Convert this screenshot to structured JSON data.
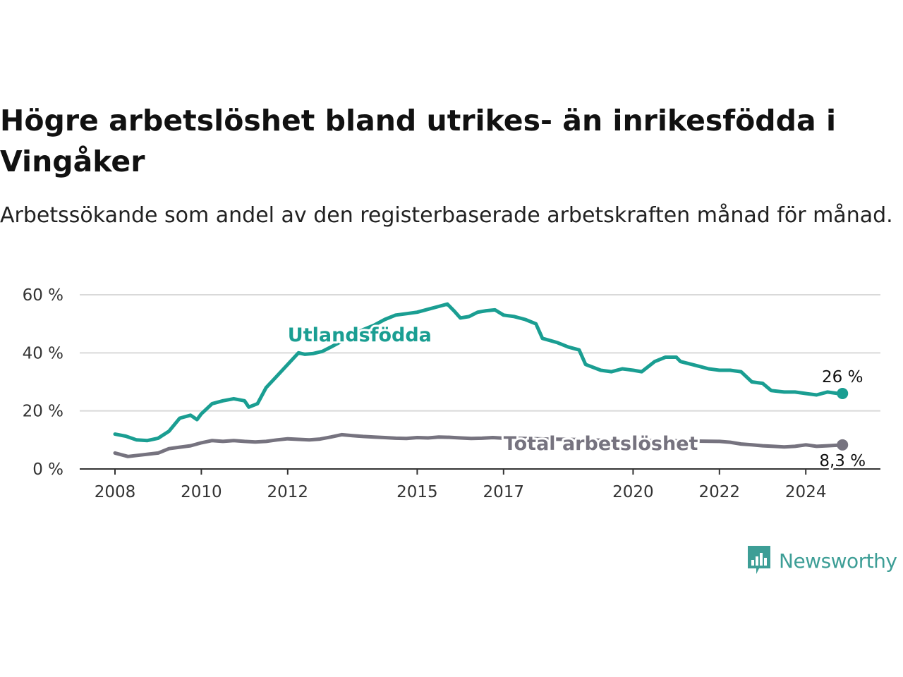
{
  "title": "Högre arbetslöshet bland utrikes- än inrikesfödda i Vingåker",
  "subtitle": "Arbetssökande som andel av den registerbaserade arbetskraften månad för månad.",
  "brand": {
    "name": "Newsworthy",
    "color": "#3d9e96",
    "icon": "newsworthy-bar-chart-icon"
  },
  "chart_data": {
    "type": "line",
    "title": "Högre arbetslöshet bland utrikes- än inrikesfödda i Vingåker",
    "xlabel": "",
    "ylabel": "",
    "x_range": [
      2008,
      2025
    ],
    "ylim": [
      0,
      60
    ],
    "y_ticks": [
      0,
      20,
      40,
      60
    ],
    "y_tick_labels": [
      "0 %",
      "20 %",
      "40 %",
      "60 %"
    ],
    "x_ticks": [
      2008,
      2010,
      2012,
      2015,
      2017,
      2020,
      2022,
      2024
    ],
    "x_tick_labels": [
      "2008",
      "2010",
      "2012",
      "2015",
      "2017",
      "2020",
      "2022",
      "2024"
    ],
    "grid": "horizontal",
    "legend": "inline labels",
    "series": [
      {
        "name": "Utlandsfödda",
        "color": "#1a9e92",
        "end_label": "26 %",
        "points": [
          [
            2008.0,
            12.0
          ],
          [
            2008.25,
            11.3
          ],
          [
            2008.5,
            10.0
          ],
          [
            2008.75,
            9.8
          ],
          [
            2009.0,
            10.6
          ],
          [
            2009.25,
            13.0
          ],
          [
            2009.5,
            17.5
          ],
          [
            2009.75,
            18.5
          ],
          [
            2009.9,
            17.0
          ],
          [
            2010.0,
            19.0
          ],
          [
            2010.25,
            22.5
          ],
          [
            2010.5,
            23.5
          ],
          [
            2010.75,
            24.2
          ],
          [
            2011.0,
            23.5
          ],
          [
            2011.1,
            21.3
          ],
          [
            2011.3,
            22.5
          ],
          [
            2011.5,
            28.0
          ],
          [
            2011.75,
            32.0
          ],
          [
            2012.0,
            36.0
          ],
          [
            2012.25,
            40.0
          ],
          [
            2012.4,
            39.5
          ],
          [
            2012.6,
            39.8
          ],
          [
            2012.8,
            40.5
          ],
          [
            2013.0,
            42.0
          ],
          [
            2013.25,
            44.0
          ],
          [
            2013.5,
            46.0
          ],
          [
            2013.75,
            48.0
          ],
          [
            2014.0,
            49.5
          ],
          [
            2014.25,
            51.5
          ],
          [
            2014.5,
            53.0
          ],
          [
            2014.75,
            53.5
          ],
          [
            2015.0,
            54.0
          ],
          [
            2015.25,
            55.0
          ],
          [
            2015.5,
            56.0
          ],
          [
            2015.7,
            56.8
          ],
          [
            2015.85,
            54.5
          ],
          [
            2016.0,
            52.0
          ],
          [
            2016.2,
            52.5
          ],
          [
            2016.4,
            54.0
          ],
          [
            2016.6,
            54.5
          ],
          [
            2016.8,
            54.8
          ],
          [
            2017.0,
            53.0
          ],
          [
            2017.25,
            52.5
          ],
          [
            2017.5,
            51.5
          ],
          [
            2017.75,
            50.0
          ],
          [
            2017.9,
            45.0
          ],
          [
            2018.25,
            43.5
          ],
          [
            2018.5,
            42.0
          ],
          [
            2018.75,
            41.0
          ],
          [
            2018.9,
            36.0
          ],
          [
            2019.25,
            34.0
          ],
          [
            2019.5,
            33.5
          ],
          [
            2019.75,
            34.5
          ],
          [
            2020.0,
            34.0
          ],
          [
            2020.2,
            33.5
          ],
          [
            2020.5,
            37.0
          ],
          [
            2020.75,
            38.5
          ],
          [
            2021.0,
            38.5
          ],
          [
            2021.1,
            37.0
          ],
          [
            2021.5,
            35.5
          ],
          [
            2021.75,
            34.5
          ],
          [
            2022.0,
            34.0
          ],
          [
            2022.25,
            34.0
          ],
          [
            2022.5,
            33.5
          ],
          [
            2022.75,
            30.0
          ],
          [
            2023.0,
            29.5
          ],
          [
            2023.2,
            27.0
          ],
          [
            2023.5,
            26.5
          ],
          [
            2023.75,
            26.5
          ],
          [
            2024.0,
            26.0
          ],
          [
            2024.25,
            25.5
          ],
          [
            2024.5,
            26.5
          ],
          [
            2024.75,
            26.0
          ],
          [
            2024.85,
            26.0
          ]
        ]
      },
      {
        "name": "Total arbetslöshet",
        "color": "#76737f",
        "end_label": "8,3 %",
        "points": [
          [
            2008.0,
            5.5
          ],
          [
            2008.3,
            4.3
          ],
          [
            2008.6,
            4.8
          ],
          [
            2009.0,
            5.5
          ],
          [
            2009.25,
            7.0
          ],
          [
            2009.5,
            7.5
          ],
          [
            2009.75,
            8.0
          ],
          [
            2010.0,
            9.0
          ],
          [
            2010.25,
            9.8
          ],
          [
            2010.5,
            9.5
          ],
          [
            2010.75,
            9.8
          ],
          [
            2011.0,
            9.5
          ],
          [
            2011.25,
            9.3
          ],
          [
            2011.5,
            9.5
          ],
          [
            2011.75,
            10.0
          ],
          [
            2012.0,
            10.4
          ],
          [
            2012.25,
            10.2
          ],
          [
            2012.5,
            10.0
          ],
          [
            2012.75,
            10.3
          ],
          [
            2013.0,
            11.0
          ],
          [
            2013.25,
            11.8
          ],
          [
            2013.5,
            11.5
          ],
          [
            2013.75,
            11.2
          ],
          [
            2014.0,
            11.0
          ],
          [
            2014.25,
            10.8
          ],
          [
            2014.5,
            10.6
          ],
          [
            2014.75,
            10.5
          ],
          [
            2015.0,
            10.8
          ],
          [
            2015.25,
            10.7
          ],
          [
            2015.5,
            11.0
          ],
          [
            2015.75,
            10.9
          ],
          [
            2016.0,
            10.7
          ],
          [
            2016.25,
            10.5
          ],
          [
            2016.5,
            10.6
          ],
          [
            2016.75,
            10.8
          ],
          [
            2017.0,
            10.6
          ],
          [
            2017.5,
            10.5
          ],
          [
            2018.0,
            10.3
          ],
          [
            2018.5,
            10.2
          ],
          [
            2019.0,
            10.0
          ],
          [
            2019.5,
            9.8
          ],
          [
            2020.0,
            9.6
          ],
          [
            2020.5,
            9.8
          ],
          [
            2021.0,
            9.7
          ],
          [
            2021.5,
            9.6
          ],
          [
            2022.0,
            9.5
          ],
          [
            2022.25,
            9.2
          ],
          [
            2022.5,
            8.6
          ],
          [
            2022.75,
            8.3
          ],
          [
            2023.0,
            8.0
          ],
          [
            2023.25,
            7.8
          ],
          [
            2023.5,
            7.6
          ],
          [
            2023.75,
            7.8
          ],
          [
            2024.0,
            8.3
          ],
          [
            2024.25,
            7.8
          ],
          [
            2024.5,
            8.0
          ],
          [
            2024.75,
            8.2
          ],
          [
            2024.85,
            8.3
          ]
        ]
      }
    ]
  }
}
